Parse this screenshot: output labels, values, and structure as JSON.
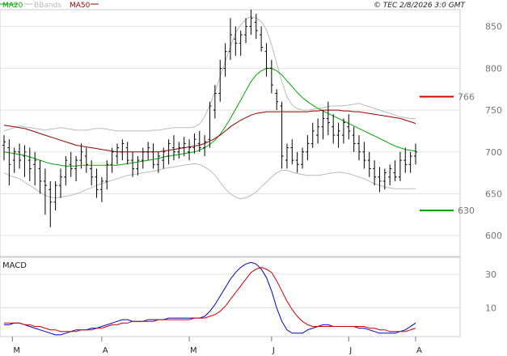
{
  "header": {
    "copyright": "© TEC 2/8/2026 3:0 GMT"
  },
  "legend": [
    {
      "label": "MA20",
      "color": "#00aa00"
    },
    {
      "label": "BBands",
      "color": "#bbbbbb"
    },
    {
      "label": "MA50",
      "color": "#990000"
    }
  ],
  "chart_data": [
    {
      "type": "line",
      "panel": "price",
      "ylim": [
        575,
        870
      ],
      "yticks": [
        600,
        650,
        700,
        750,
        800,
        850
      ],
      "grid": true,
      "months": [
        "M",
        "A",
        "M",
        "J",
        "J",
        "A"
      ],
      "levels": [
        {
          "value": 766,
          "label": "766",
          "color": "#cc0000"
        },
        {
          "value": 630,
          "label": "630",
          "color": "#009900"
        }
      ],
      "bars": [
        [
          708,
          720,
          690,
          712
        ],
        [
          705,
          715,
          660,
          685
        ],
        [
          690,
          705,
          675,
          700
        ],
        [
          700,
          710,
          680,
          690
        ],
        [
          695,
          708,
          670,
          700
        ],
        [
          690,
          705,
          665,
          680
        ],
        [
          685,
          700,
          660,
          690
        ],
        [
          680,
          690,
          650,
          665
        ],
        [
          665,
          680,
          625,
          660
        ],
        [
          655,
          665,
          610,
          640
        ],
        [
          640,
          665,
          630,
          660
        ],
        [
          660,
          680,
          645,
          670
        ],
        [
          670,
          695,
          660,
          690
        ],
        [
          685,
          700,
          670,
          680
        ],
        [
          680,
          695,
          665,
          690
        ],
        [
          690,
          710,
          680,
          700
        ],
        [
          695,
          705,
          675,
          685
        ],
        [
          680,
          690,
          660,
          670
        ],
        [
          670,
          680,
          645,
          655
        ],
        [
          655,
          670,
          640,
          665
        ],
        [
          665,
          690,
          655,
          685
        ],
        [
          685,
          705,
          675,
          700
        ],
        [
          695,
          710,
          685,
          705
        ],
        [
          700,
          715,
          690,
          710
        ],
        [
          705,
          712,
          685,
          690
        ],
        [
          690,
          700,
          670,
          680
        ],
        [
          680,
          695,
          672,
          690
        ],
        [
          690,
          705,
          680,
          700
        ],
        [
          700,
          712,
          690,
          705
        ],
        [
          700,
          710,
          680,
          685
        ],
        [
          685,
          700,
          675,
          695
        ],
        [
          690,
          705,
          680,
          700
        ],
        [
          695,
          715,
          685,
          710
        ],
        [
          705,
          720,
          690,
          700
        ],
        [
          700,
          712,
          692,
          705
        ],
        [
          705,
          718,
          695,
          710
        ],
        [
          700,
          715,
          690,
          705
        ],
        [
          705,
          722,
          698,
          715
        ],
        [
          710,
          725,
          700,
          705
        ],
        [
          705,
          720,
          695,
          712
        ],
        [
          715,
          760,
          705,
          755
        ],
        [
          750,
          780,
          740,
          770
        ],
        [
          770,
          810,
          760,
          800
        ],
        [
          800,
          830,
          790,
          820
        ],
        [
          820,
          860,
          810,
          840
        ],
        [
          835,
          850,
          815,
          830
        ],
        [
          830,
          845,
          815,
          840
        ],
        [
          840,
          860,
          830,
          850
        ],
        [
          850,
          870,
          840,
          860
        ],
        [
          855,
          865,
          835,
          845
        ],
        [
          840,
          850,
          820,
          825
        ],
        [
          820,
          830,
          790,
          800
        ],
        [
          800,
          810,
          770,
          780
        ],
        [
          770,
          775,
          750,
          760
        ],
        [
          755,
          760,
          680,
          695
        ],
        [
          690,
          710,
          680,
          705
        ],
        [
          705,
          715,
          685,
          690
        ],
        [
          690,
          700,
          675,
          685
        ],
        [
          685,
          705,
          680,
          700
        ],
        [
          700,
          720,
          690,
          710
        ],
        [
          710,
          735,
          705,
          725
        ],
        [
          720,
          740,
          710,
          730
        ],
        [
          730,
          750,
          715,
          740
        ],
        [
          740,
          760,
          720,
          735
        ],
        [
          730,
          745,
          710,
          720
        ],
        [
          720,
          735,
          705,
          725
        ],
        [
          720,
          740,
          710,
          735
        ],
        [
          730,
          745,
          715,
          725
        ],
        [
          720,
          730,
          700,
          710
        ],
        [
          710,
          720,
          690,
          700
        ],
        [
          700,
          712,
          680,
          690
        ],
        [
          690,
          700,
          670,
          680
        ],
        [
          680,
          690,
          660,
          670
        ],
        [
          670,
          682,
          652,
          665
        ],
        [
          665,
          680,
          655,
          675
        ],
        [
          670,
          685,
          660,
          680
        ],
        [
          675,
          690,
          665,
          670
        ],
        [
          670,
          700,
          665,
          690
        ],
        [
          690,
          705,
          675,
          685
        ],
        [
          685,
          700,
          675,
          695
        ],
        [
          695,
          710,
          685,
          700
        ]
      ],
      "series": [
        {
          "key": "bb_upper",
          "color": "#bbbbbb",
          "values": [
            725,
            727,
            729,
            731,
            730,
            729,
            728,
            727,
            726,
            727,
            728,
            729,
            728,
            727,
            726,
            726,
            726,
            727,
            728,
            728,
            727,
            726,
            725,
            725,
            725,
            725,
            725,
            725,
            725,
            726,
            726,
            727,
            728,
            729,
            729,
            729,
            729,
            730,
            733,
            742,
            756,
            772,
            790,
            808,
            826,
            842,
            852,
            858,
            862,
            860,
            856,
            846,
            828,
            806,
            784,
            766,
            756,
            752,
            750,
            750,
            751,
            752,
            753,
            754,
            755,
            755,
            755,
            756,
            757,
            758,
            756,
            754,
            752,
            750,
            748,
            746,
            744,
            742,
            741,
            740,
            740
          ]
        },
        {
          "key": "bb_lower",
          "color": "#bbbbbb",
          "values": [
            675,
            672,
            670,
            668,
            664,
            660,
            656,
            652,
            648,
            646,
            645,
            646,
            647,
            648,
            650,
            652,
            655,
            657,
            660,
            662,
            664,
            666,
            668,
            670,
            672,
            673,
            674,
            675,
            676,
            677,
            678,
            680,
            681,
            682,
            683,
            684,
            685,
            686,
            685,
            682,
            678,
            672,
            664,
            656,
            650,
            646,
            644,
            645,
            648,
            652,
            658,
            664,
            670,
            675,
            678,
            678,
            676,
            674,
            673,
            672,
            672,
            672,
            673,
            674,
            675,
            676,
            675,
            674,
            672,
            670,
            668,
            665,
            662,
            660,
            658,
            657,
            656,
            656,
            656,
            656,
            656
          ]
        },
        {
          "key": "ma20",
          "color": "#00aa00",
          "values": [
            700,
            699,
            698,
            697,
            696,
            694,
            692,
            690,
            688,
            686,
            685,
            684,
            683,
            683,
            683,
            684,
            684,
            684,
            684,
            684,
            684,
            684,
            684,
            685,
            686,
            687,
            688,
            689,
            690,
            691,
            692,
            694,
            695,
            696,
            697,
            698,
            699,
            700,
            702,
            705,
            709,
            714,
            721,
            730,
            740,
            751,
            762,
            773,
            784,
            792,
            797,
            800,
            800,
            797,
            792,
            785,
            778,
            771,
            765,
            760,
            756,
            752,
            749,
            746,
            743,
            740,
            737,
            734,
            731,
            728,
            725,
            722,
            719,
            716,
            713,
            710,
            707,
            705,
            703,
            702,
            701
          ]
        },
        {
          "key": "ma50",
          "color": "#990000",
          "values": [
            732,
            731,
            730,
            729,
            728,
            726,
            724,
            722,
            720,
            718,
            716,
            714,
            712,
            710,
            708,
            707,
            706,
            705,
            704,
            703,
            702,
            701,
            700,
            700,
            700,
            700,
            700,
            700,
            700,
            700,
            700,
            701,
            702,
            703,
            704,
            705,
            706,
            707,
            708,
            710,
            713,
            716,
            720,
            725,
            730,
            734,
            738,
            741,
            744,
            746,
            747,
            748,
            748,
            748,
            748,
            748,
            748,
            748,
            748,
            748,
            749,
            749,
            750,
            750,
            750,
            750,
            749,
            749,
            748,
            748,
            747,
            746,
            745,
            744,
            743,
            742,
            741,
            740,
            738,
            736,
            734
          ]
        }
      ]
    },
    {
      "type": "line",
      "panel": "macd",
      "title": "MACD",
      "ylim": [
        -7,
        40
      ],
      "yticks": [
        10,
        30
      ],
      "grid": true,
      "series": [
        {
          "key": "macd",
          "color": "#0000cc",
          "values": [
            0,
            0,
            1,
            1,
            0,
            -1,
            -2,
            -3,
            -4,
            -5,
            -6,
            -6,
            -5,
            -4,
            -3,
            -3,
            -3,
            -2,
            -2,
            -1,
            0,
            1,
            2,
            3,
            3,
            2,
            2,
            2,
            3,
            3,
            3,
            3,
            4,
            4,
            4,
            4,
            4,
            4,
            4,
            5,
            8,
            12,
            17,
            22,
            27,
            31,
            34,
            36,
            37,
            36,
            33,
            28,
            20,
            10,
            2,
            -3,
            -5,
            -5,
            -5,
            -3,
            -2,
            -1,
            0,
            0,
            -1,
            -1,
            -1,
            -1,
            -1,
            -2,
            -2,
            -3,
            -4,
            -5,
            -5,
            -5,
            -5,
            -4,
            -3,
            -1,
            1
          ]
        },
        {
          "key": "signal",
          "color": "#cc0000",
          "values": [
            1,
            1,
            1,
            1,
            0,
            0,
            -1,
            -1,
            -2,
            -3,
            -3,
            -4,
            -4,
            -4,
            -4,
            -3,
            -3,
            -3,
            -2,
            -2,
            -1,
            0,
            0,
            1,
            1,
            2,
            2,
            2,
            2,
            2,
            3,
            3,
            3,
            3,
            3,
            3,
            3,
            4,
            4,
            4,
            5,
            6,
            8,
            11,
            15,
            19,
            23,
            27,
            31,
            33,
            34,
            33,
            31,
            26,
            20,
            14,
            9,
            5,
            2,
            0,
            -1,
            -1,
            -1,
            -1,
            -1,
            -1,
            -1,
            -1,
            -1,
            -1,
            -1,
            -2,
            -2,
            -3,
            -3,
            -4,
            -4,
            -4,
            -4,
            -3,
            -2
          ]
        }
      ]
    }
  ]
}
